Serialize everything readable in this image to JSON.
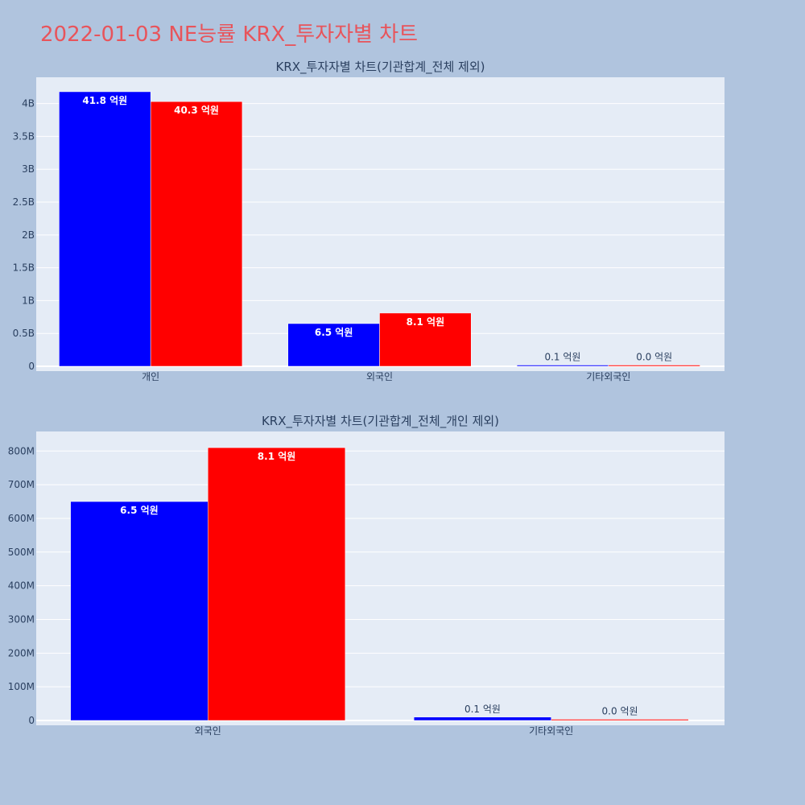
{
  "page_title": "2022-01-03 NE능률 KRX_투자자별 차트",
  "colors": {
    "series_a": "#0000ff",
    "series_b": "#ff0000",
    "plot_bg": "#e5ecf6",
    "page_bg": "#b0c4de",
    "title": "#e8545b"
  },
  "chart_data": [
    {
      "type": "bar",
      "title": "KRX_투자자별 차트(기관합계_전체 제외)",
      "categories": [
        "개인",
        "외국인",
        "기타외국인"
      ],
      "series": [
        {
          "values": [
            4180000000,
            650000000,
            10000000
          ],
          "labels": [
            "41.8 억원",
            "6.5 억원",
            "0.1 억원"
          ]
        },
        {
          "values": [
            4030000000,
            810000000,
            0
          ],
          "labels": [
            "40.3 억원",
            "8.1 억원",
            "0.0 억원"
          ]
        }
      ],
      "yticks": [
        0,
        500000000,
        1000000000,
        1500000000,
        2000000000,
        2500000000,
        3000000000,
        3500000000,
        4000000000
      ],
      "ytick_labels": [
        "0",
        "0.5B",
        "1B",
        "1.5B",
        "2B",
        "2.5B",
        "3B",
        "3.5B",
        "4B"
      ],
      "ylim": [
        0,
        4400000000
      ],
      "grid": true
    },
    {
      "type": "bar",
      "title": "KRX_투자자별 차트(기관합계_전체_개인 제외)",
      "categories": [
        "외국인",
        "기타외국인"
      ],
      "series": [
        {
          "values": [
            650000000,
            10000000
          ],
          "labels": [
            "6.5 억원",
            "0.1 억원"
          ]
        },
        {
          "values": [
            810000000,
            0
          ],
          "labels": [
            "8.1 억원",
            "0.0 억원"
          ]
        }
      ],
      "yticks": [
        0,
        100000000,
        200000000,
        300000000,
        400000000,
        500000000,
        600000000,
        700000000,
        800000000
      ],
      "ytick_labels": [
        "0",
        "100M",
        "200M",
        "300M",
        "400M",
        "500M",
        "600M",
        "700M",
        "800M"
      ],
      "ylim": [
        0,
        858000000
      ],
      "grid": true
    }
  ]
}
